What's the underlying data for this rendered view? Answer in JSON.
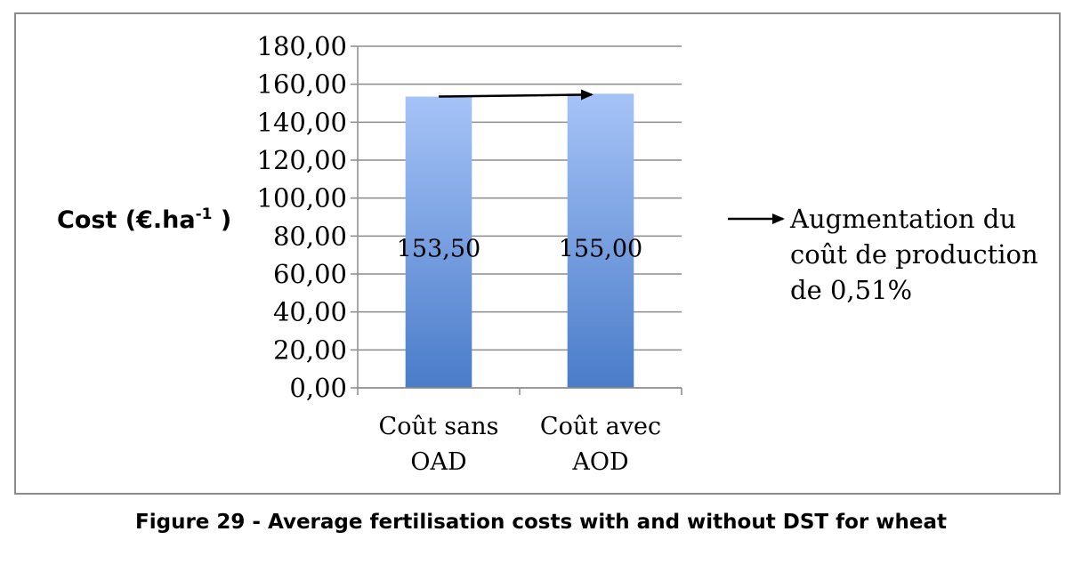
{
  "chart_data": {
    "type": "bar",
    "categories": [
      [
        "Coût sans",
        "OAD"
      ],
      [
        "Coût avec",
        "AOD"
      ]
    ],
    "values": [
      153.5,
      155.0
    ],
    "value_labels": [
      "153,50",
      "155,00"
    ],
    "ylabel": "Cost (€.ha",
    "ylabel_sup": "-1",
    "ylabel_close": " )",
    "ylim": [
      0,
      180
    ],
    "yticks": [
      0,
      20,
      40,
      60,
      80,
      100,
      120,
      140,
      160,
      180
    ],
    "ytick_labels": [
      "0,00",
      "20,00",
      "40,00",
      "60,00",
      "80,00",
      "100,00",
      "120,00",
      "140,00",
      "160,00",
      "180,00"
    ],
    "grid": true,
    "legend": "none",
    "annotation": {
      "lines": [
        "Augmentation du",
        "coût de production",
        "de 0,51%"
      ]
    },
    "bar_color_top": "#a6c3f7",
    "bar_color_bottom": "#4a7cc9"
  },
  "caption": "Figure 29 - Average fertilisation costs with and without DST for wheat"
}
